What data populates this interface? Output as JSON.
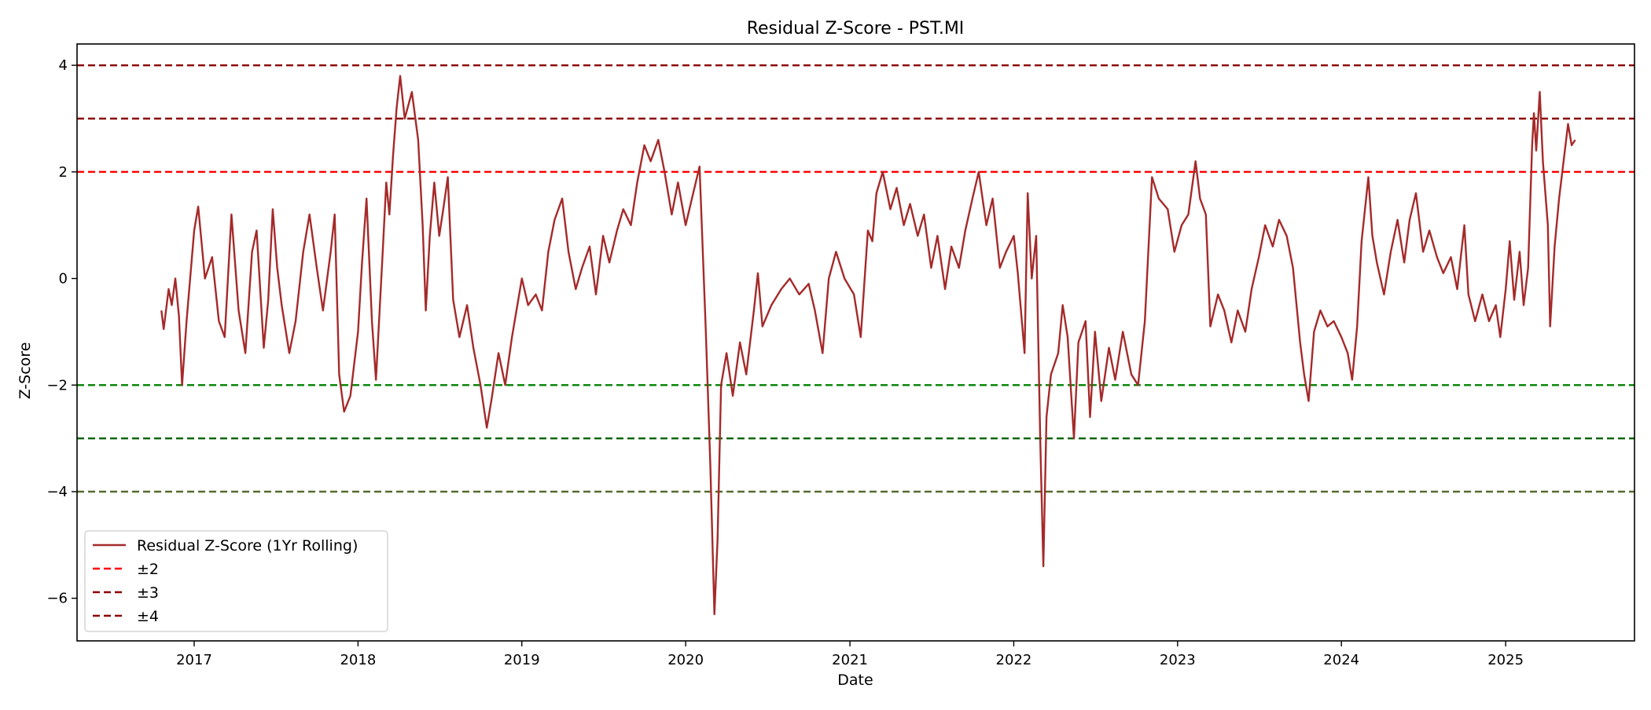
{
  "chart_data": {
    "type": "line",
    "title": "Residual Z-Score - PST.MI",
    "xlabel": "Date",
    "ylabel": "Z-Score",
    "xlim": [
      "2016-04-15",
      "2025-10-15"
    ],
    "ylim": [
      -6.8,
      4.4
    ],
    "x_ticks": [
      "2017",
      "2018",
      "2019",
      "2020",
      "2021",
      "2022",
      "2023",
      "2024",
      "2025"
    ],
    "x_tick_dates": [
      "2017-01-01",
      "2018-01-01",
      "2019-01-01",
      "2020-01-01",
      "2021-01-01",
      "2022-01-01",
      "2023-01-01",
      "2024-01-01",
      "2025-01-01"
    ],
    "y_ticks": [
      -6,
      -4,
      -2,
      0,
      2,
      4
    ],
    "y_tick_labels": [
      "−6",
      "−4",
      "−2",
      "0",
      "2",
      "4"
    ],
    "grid": false,
    "legend_position": "lower-left",
    "legend": [
      "Residual Z-Score (1Yr Rolling)",
      "±2",
      "±3",
      "±4"
    ],
    "series": [
      {
        "name": "Residual Z-Score (1Yr Rolling)",
        "color": "#a52a2a",
        "points": [
          [
            "2016-10-20",
            -0.6
          ],
          [
            "2016-10-25",
            -0.95
          ],
          [
            "2016-11-05",
            -0.2
          ],
          [
            "2016-11-12",
            -0.5
          ],
          [
            "2016-11-20",
            0.0
          ],
          [
            "2016-11-28",
            -0.7
          ],
          [
            "2016-12-05",
            -2.0
          ],
          [
            "2016-12-15",
            -0.8
          ],
          [
            "2017-01-01",
            0.9
          ],
          [
            "2017-01-10",
            1.35
          ],
          [
            "2017-01-25",
            0.0
          ],
          [
            "2017-02-10",
            0.4
          ],
          [
            "2017-02-25",
            -0.8
          ],
          [
            "2017-03-10",
            -1.1
          ],
          [
            "2017-03-25",
            1.2
          ],
          [
            "2017-04-10",
            -0.6
          ],
          [
            "2017-04-25",
            -1.4
          ],
          [
            "2017-05-10",
            0.5
          ],
          [
            "2017-05-20",
            0.9
          ],
          [
            "2017-06-05",
            -1.3
          ],
          [
            "2017-06-15",
            -0.4
          ],
          [
            "2017-06-25",
            1.3
          ],
          [
            "2017-07-05",
            0.2
          ],
          [
            "2017-07-15",
            -0.5
          ],
          [
            "2017-08-01",
            -1.4
          ],
          [
            "2017-08-15",
            -0.8
          ],
          [
            "2017-09-01",
            0.5
          ],
          [
            "2017-09-15",
            1.2
          ],
          [
            "2017-10-01",
            0.2
          ],
          [
            "2017-10-15",
            -0.6
          ],
          [
            "2017-11-01",
            0.5
          ],
          [
            "2017-11-10",
            1.2
          ],
          [
            "2017-11-20",
            -1.8
          ],
          [
            "2017-12-01",
            -2.5
          ],
          [
            "2017-12-15",
            -2.2
          ],
          [
            "2018-01-01",
            -1.0
          ],
          [
            "2018-01-10",
            0.3
          ],
          [
            "2018-01-20",
            1.5
          ],
          [
            "2018-02-01",
            -0.8
          ],
          [
            "2018-02-10",
            -1.9
          ],
          [
            "2018-02-25",
            0.5
          ],
          [
            "2018-03-05",
            1.8
          ],
          [
            "2018-03-12",
            1.2
          ],
          [
            "2018-03-20",
            2.3
          ],
          [
            "2018-03-28",
            3.2
          ],
          [
            "2018-04-05",
            3.8
          ],
          [
            "2018-04-15",
            3.0
          ],
          [
            "2018-05-01",
            3.5
          ],
          [
            "2018-05-15",
            2.6
          ],
          [
            "2018-05-25",
            1.0
          ],
          [
            "2018-06-01",
            -0.6
          ],
          [
            "2018-06-10",
            0.8
          ],
          [
            "2018-06-20",
            1.8
          ],
          [
            "2018-07-01",
            0.8
          ],
          [
            "2018-07-10",
            1.3
          ],
          [
            "2018-07-20",
            1.9
          ],
          [
            "2018-08-01",
            -0.4
          ],
          [
            "2018-08-15",
            -1.1
          ],
          [
            "2018-09-01",
            -0.5
          ],
          [
            "2018-09-15",
            -1.3
          ],
          [
            "2018-10-01",
            -2.0
          ],
          [
            "2018-10-15",
            -2.8
          ],
          [
            "2018-10-25",
            -2.3
          ],
          [
            "2018-11-10",
            -1.4
          ],
          [
            "2018-11-25",
            -2.0
          ],
          [
            "2018-12-10",
            -1.1
          ],
          [
            "2019-01-01",
            0.0
          ],
          [
            "2019-01-15",
            -0.5
          ],
          [
            "2019-02-01",
            -0.3
          ],
          [
            "2019-02-15",
            -0.6
          ],
          [
            "2019-03-01",
            0.5
          ],
          [
            "2019-03-15",
            1.1
          ],
          [
            "2019-04-01",
            1.5
          ],
          [
            "2019-04-15",
            0.5
          ],
          [
            "2019-05-01",
            -0.2
          ],
          [
            "2019-05-15",
            0.2
          ],
          [
            "2019-06-01",
            0.6
          ],
          [
            "2019-06-15",
            -0.3
          ],
          [
            "2019-07-01",
            0.8
          ],
          [
            "2019-07-15",
            0.3
          ],
          [
            "2019-08-01",
            0.9
          ],
          [
            "2019-08-15",
            1.3
          ],
          [
            "2019-09-01",
            1.0
          ],
          [
            "2019-09-15",
            1.8
          ],
          [
            "2019-10-01",
            2.5
          ],
          [
            "2019-10-15",
            2.2
          ],
          [
            "2019-11-01",
            2.6
          ],
          [
            "2019-11-15",
            2.0
          ],
          [
            "2019-12-01",
            1.2
          ],
          [
            "2019-12-15",
            1.8
          ],
          [
            "2020-01-01",
            1.0
          ],
          [
            "2020-01-15",
            1.5
          ],
          [
            "2020-02-01",
            2.1
          ],
          [
            "2020-02-15",
            -1.0
          ],
          [
            "2020-02-25",
            -3.5
          ],
          [
            "2020-03-05",
            -6.3
          ],
          [
            "2020-03-12",
            -4.9
          ],
          [
            "2020-03-20",
            -2.0
          ],
          [
            "2020-04-01",
            -1.4
          ],
          [
            "2020-04-15",
            -2.2
          ],
          [
            "2020-05-01",
            -1.2
          ],
          [
            "2020-05-15",
            -1.8
          ],
          [
            "2020-06-01",
            -0.6
          ],
          [
            "2020-06-10",
            0.1
          ],
          [
            "2020-06-20",
            -0.9
          ],
          [
            "2020-07-10",
            -0.5
          ],
          [
            "2020-08-01",
            -0.2
          ],
          [
            "2020-08-20",
            0.0
          ],
          [
            "2020-09-10",
            -0.3
          ],
          [
            "2020-10-01",
            -0.1
          ],
          [
            "2020-10-15",
            -0.6
          ],
          [
            "2020-11-01",
            -1.4
          ],
          [
            "2020-11-15",
            0.0
          ],
          [
            "2020-12-01",
            0.5
          ],
          [
            "2020-12-20",
            0.0
          ],
          [
            "2021-01-10",
            -0.3
          ],
          [
            "2021-01-25",
            -1.1
          ],
          [
            "2021-02-10",
            0.9
          ],
          [
            "2021-02-20",
            0.7
          ],
          [
            "2021-03-01",
            1.6
          ],
          [
            "2021-03-15",
            2.0
          ],
          [
            "2021-04-01",
            1.3
          ],
          [
            "2021-04-15",
            1.7
          ],
          [
            "2021-05-01",
            1.0
          ],
          [
            "2021-05-15",
            1.4
          ],
          [
            "2021-06-01",
            0.8
          ],
          [
            "2021-06-15",
            1.2
          ],
          [
            "2021-07-01",
            0.2
          ],
          [
            "2021-07-15",
            0.8
          ],
          [
            "2021-08-01",
            -0.2
          ],
          [
            "2021-08-15",
            0.6
          ],
          [
            "2021-09-01",
            0.2
          ],
          [
            "2021-09-15",
            0.9
          ],
          [
            "2021-10-01",
            1.5
          ],
          [
            "2021-10-15",
            2.0
          ],
          [
            "2021-11-01",
            1.0
          ],
          [
            "2021-11-15",
            1.5
          ],
          [
            "2021-12-01",
            0.2
          ],
          [
            "2021-12-15",
            0.5
          ],
          [
            "2022-01-01",
            0.8
          ],
          [
            "2022-01-10",
            0.1
          ],
          [
            "2022-01-25",
            -1.4
          ],
          [
            "2022-02-01",
            1.6
          ],
          [
            "2022-02-10",
            0.0
          ],
          [
            "2022-02-20",
            0.8
          ],
          [
            "2022-03-01",
            -3.0
          ],
          [
            "2022-03-08",
            -5.4
          ],
          [
            "2022-03-15",
            -2.6
          ],
          [
            "2022-03-25",
            -1.8
          ],
          [
            "2022-04-10",
            -1.4
          ],
          [
            "2022-04-20",
            -0.5
          ],
          [
            "2022-05-01",
            -1.1
          ],
          [
            "2022-05-15",
            -3.0
          ],
          [
            "2022-05-25",
            -1.2
          ],
          [
            "2022-06-10",
            -0.8
          ],
          [
            "2022-06-20",
            -2.6
          ],
          [
            "2022-07-01",
            -1.0
          ],
          [
            "2022-07-15",
            -2.3
          ],
          [
            "2022-08-01",
            -1.3
          ],
          [
            "2022-08-15",
            -1.9
          ],
          [
            "2022-09-01",
            -1.0
          ],
          [
            "2022-09-20",
            -1.8
          ],
          [
            "2022-10-05",
            -2.0
          ],
          [
            "2022-10-20",
            -0.8
          ],
          [
            "2022-11-05",
            1.9
          ],
          [
            "2022-11-20",
            1.5
          ],
          [
            "2022-12-10",
            1.3
          ],
          [
            "2022-12-25",
            0.5
          ],
          [
            "2023-01-10",
            1.0
          ],
          [
            "2023-01-25",
            1.2
          ],
          [
            "2023-02-10",
            2.2
          ],
          [
            "2023-02-20",
            1.5
          ],
          [
            "2023-03-05",
            1.2
          ],
          [
            "2023-03-15",
            -0.9
          ],
          [
            "2023-04-01",
            -0.3
          ],
          [
            "2023-04-15",
            -0.6
          ],
          [
            "2023-05-01",
            -1.2
          ],
          [
            "2023-05-15",
            -0.6
          ],
          [
            "2023-06-01",
            -1.0
          ],
          [
            "2023-06-15",
            -0.2
          ],
          [
            "2023-07-01",
            0.4
          ],
          [
            "2023-07-15",
            1.0
          ],
          [
            "2023-08-01",
            0.6
          ],
          [
            "2023-08-15",
            1.1
          ],
          [
            "2023-09-01",
            0.8
          ],
          [
            "2023-09-15",
            0.2
          ],
          [
            "2023-10-01",
            -1.2
          ],
          [
            "2023-10-10",
            -1.8
          ],
          [
            "2023-10-20",
            -2.3
          ],
          [
            "2023-11-01",
            -1.0
          ],
          [
            "2023-11-15",
            -0.6
          ],
          [
            "2023-12-01",
            -0.9
          ],
          [
            "2023-12-15",
            -0.8
          ],
          [
            "2024-01-01",
            -1.1
          ],
          [
            "2024-01-15",
            -1.4
          ],
          [
            "2024-01-25",
            -1.9
          ],
          [
            "2024-02-05",
            -0.9
          ],
          [
            "2024-02-15",
            0.7
          ],
          [
            "2024-03-01",
            1.9
          ],
          [
            "2024-03-10",
            0.8
          ],
          [
            "2024-03-20",
            0.3
          ],
          [
            "2024-04-05",
            -0.3
          ],
          [
            "2024-04-20",
            0.5
          ],
          [
            "2024-05-05",
            1.1
          ],
          [
            "2024-05-20",
            0.3
          ],
          [
            "2024-06-01",
            1.1
          ],
          [
            "2024-06-15",
            1.6
          ],
          [
            "2024-07-01",
            0.5
          ],
          [
            "2024-07-15",
            0.9
          ],
          [
            "2024-08-01",
            0.4
          ],
          [
            "2024-08-15",
            0.1
          ],
          [
            "2024-09-01",
            0.4
          ],
          [
            "2024-09-15",
            -0.2
          ],
          [
            "2024-10-01",
            1.0
          ],
          [
            "2024-10-10",
            -0.3
          ],
          [
            "2024-10-25",
            -0.8
          ],
          [
            "2024-11-10",
            -0.3
          ],
          [
            "2024-11-25",
            -0.8
          ],
          [
            "2024-12-10",
            -0.5
          ],
          [
            "2024-12-20",
            -1.1
          ],
          [
            "2025-01-01",
            -0.2
          ],
          [
            "2025-01-10",
            0.7
          ],
          [
            "2025-01-20",
            -0.4
          ],
          [
            "2025-02-01",
            0.5
          ],
          [
            "2025-02-10",
            -0.5
          ],
          [
            "2025-02-20",
            0.2
          ],
          [
            "2025-03-01",
            2.5
          ],
          [
            "2025-03-05",
            3.1
          ],
          [
            "2025-03-10",
            2.4
          ],
          [
            "2025-03-18",
            3.5
          ],
          [
            "2025-03-25",
            2.2
          ],
          [
            "2025-04-05",
            1.0
          ],
          [
            "2025-04-10",
            -0.9
          ],
          [
            "2025-04-20",
            0.6
          ],
          [
            "2025-04-30",
            1.5
          ],
          [
            "2025-05-10",
            2.2
          ],
          [
            "2025-05-20",
            2.9
          ],
          [
            "2025-05-28",
            2.5
          ],
          [
            "2025-06-05",
            2.6
          ]
        ]
      }
    ],
    "reference_lines": [
      {
        "y": 4,
        "color": "#8b0000",
        "legend_label": "±4"
      },
      {
        "y": 3,
        "color": "#8b0000",
        "legend_label": "±3"
      },
      {
        "y": 2,
        "color": "#ff0000",
        "legend_label": "±2"
      },
      {
        "y": -2,
        "color": "#008000"
      },
      {
        "y": -3,
        "color": "#006400"
      },
      {
        "y": -4,
        "color": "#556b2f"
      }
    ],
    "legend_items": [
      {
        "label": "Residual Z-Score (1Yr Rolling)",
        "color": "#a52a2a",
        "style": "solid"
      },
      {
        "label": "±2",
        "color": "#ff0000",
        "style": "dashed"
      },
      {
        "label": "±3",
        "color": "#8b0000",
        "style": "dashed"
      },
      {
        "label": "±4",
        "color": "#8b0000",
        "style": "dashed"
      }
    ]
  }
}
